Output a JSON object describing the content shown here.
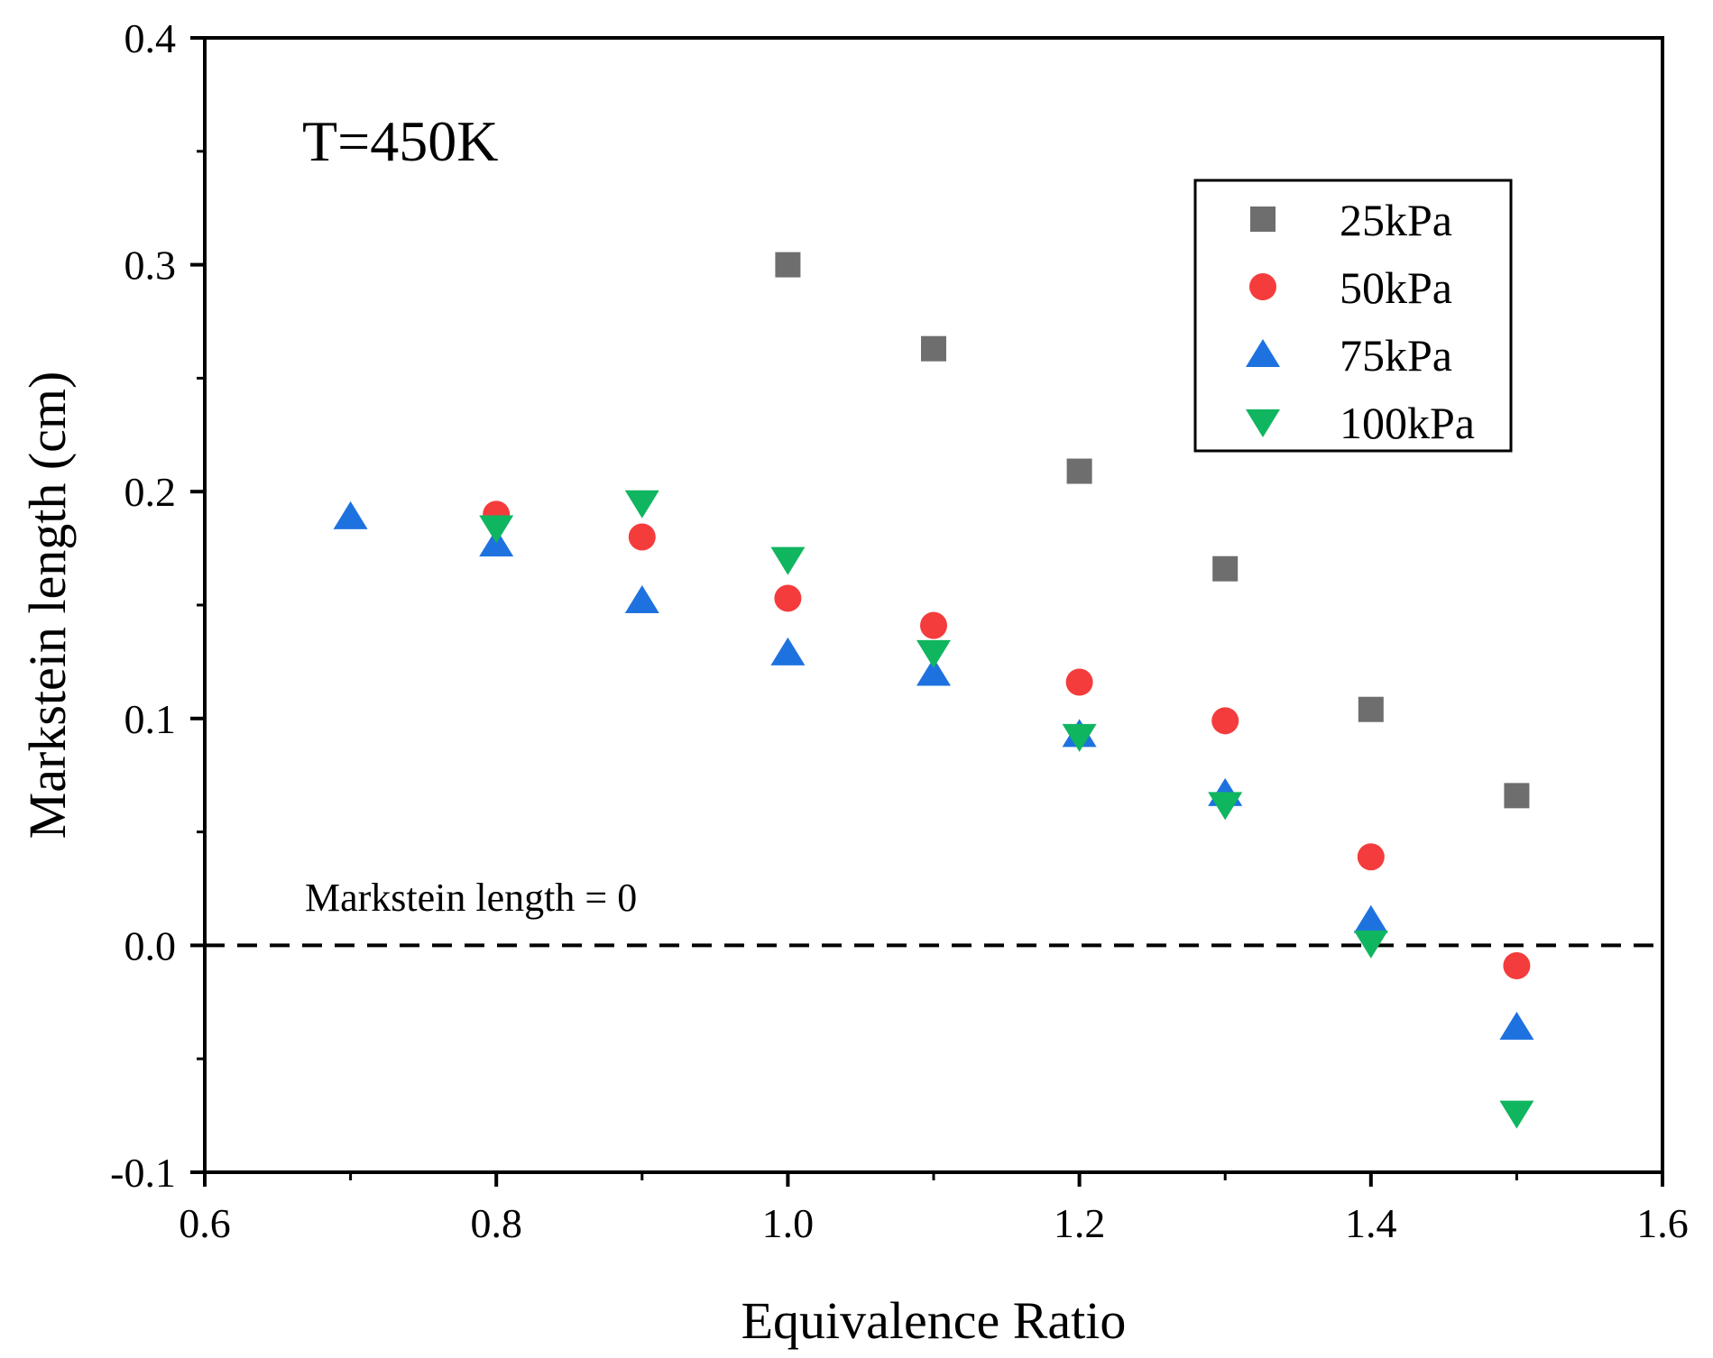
{
  "chart_data": {
    "type": "scatter",
    "title": "",
    "xlabel": "Equivalence Ratio",
    "ylabel": "Markstein length (cm)",
    "xlim": [
      0.6,
      1.6
    ],
    "ylim": [
      -0.1,
      0.4
    ],
    "xticks": [
      "0.6",
      "0.8",
      "1.0",
      "1.2",
      "1.4",
      "1.6"
    ],
    "yticks": [
      "-0.1",
      "0.0",
      "0.1",
      "0.2",
      "0.3",
      "0.4"
    ],
    "x_tick_values": [
      0.6,
      0.8,
      1.0,
      1.2,
      1.4,
      1.6
    ],
    "y_tick_values": [
      -0.1,
      0.0,
      0.1,
      0.2,
      0.3,
      0.4
    ],
    "annotations": {
      "condition": "T=450K",
      "reference_line_label": "Markstein length = 0"
    },
    "reference_line": {
      "y": 0.0,
      "style": "dashed",
      "color": "#000000"
    },
    "legend_position": "top-right",
    "series": [
      {
        "name": "25kPa",
        "marker": "square",
        "color": "#6e6e6e",
        "points": [
          {
            "x": 1.0,
            "y": 0.3
          },
          {
            "x": 1.1,
            "y": 0.263
          },
          {
            "x": 1.2,
            "y": 0.209
          },
          {
            "x": 1.3,
            "y": 0.166
          },
          {
            "x": 1.4,
            "y": 0.104
          },
          {
            "x": 1.5,
            "y": 0.066
          }
        ]
      },
      {
        "name": "50kPa",
        "marker": "circle",
        "color": "#f43c3c",
        "points": [
          {
            "x": 0.8,
            "y": 0.19
          },
          {
            "x": 0.9,
            "y": 0.18
          },
          {
            "x": 1.0,
            "y": 0.153
          },
          {
            "x": 1.1,
            "y": 0.141
          },
          {
            "x": 1.2,
            "y": 0.116
          },
          {
            "x": 1.3,
            "y": 0.099
          },
          {
            "x": 1.4,
            "y": 0.039
          },
          {
            "x": 1.5,
            "y": -0.009
          }
        ]
      },
      {
        "name": "75kPa",
        "marker": "triangle-up",
        "color": "#1e72e0",
        "points": [
          {
            "x": 0.7,
            "y": 0.189
          },
          {
            "x": 0.8,
            "y": 0.177
          },
          {
            "x": 0.9,
            "y": 0.152
          },
          {
            "x": 1.0,
            "y": 0.129
          },
          {
            "x": 1.1,
            "y": 0.12
          },
          {
            "x": 1.2,
            "y": 0.093
          },
          {
            "x": 1.3,
            "y": 0.067
          },
          {
            "x": 1.4,
            "y": 0.011
          },
          {
            "x": 1.5,
            "y": -0.036
          }
        ]
      },
      {
        "name": "100kPa",
        "marker": "triangle-down",
        "color": "#10b560",
        "points": [
          {
            "x": 0.8,
            "y": 0.184
          },
          {
            "x": 0.9,
            "y": 0.195
          },
          {
            "x": 1.0,
            "y": 0.17
          },
          {
            "x": 1.1,
            "y": 0.129
          },
          {
            "x": 1.2,
            "y": 0.092
          },
          {
            "x": 1.3,
            "y": 0.062
          },
          {
            "x": 1.4,
            "y": 0.001
          },
          {
            "x": 1.5,
            "y": -0.074
          }
        ]
      }
    ]
  }
}
